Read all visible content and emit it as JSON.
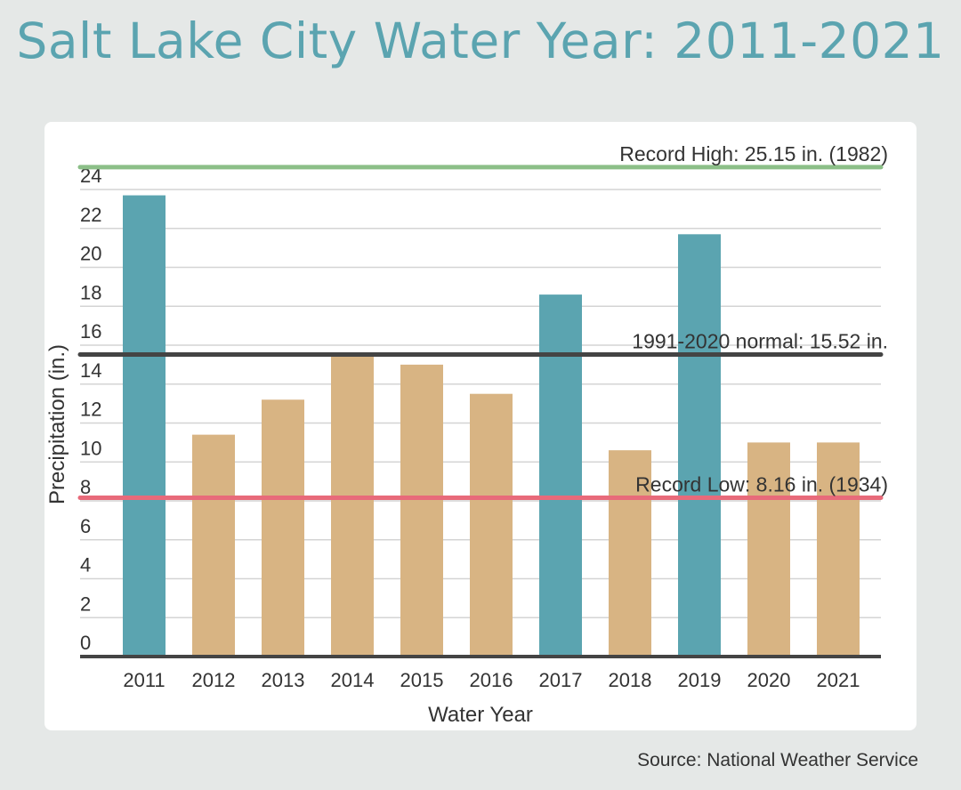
{
  "title": "Salt Lake City Water Year: 2011-2021",
  "source": "Source: National Weather Service",
  "colors": {
    "background": "#e5e8e7",
    "title": "#5ba4b0",
    "above_normal_bar": "#5ba4b0",
    "below_normal_bar": "#d8b483",
    "record_high_line": "#8cbf88",
    "normal_line": "#444444",
    "record_low_line": "#e86a7a",
    "gridline": "#d4d4d4"
  },
  "chart_data": {
    "type": "bar",
    "title": "Salt Lake City Water Year: 2011-2021",
    "xlabel": "Water Year",
    "ylabel": "Precipitation (in.)",
    "ylim": [
      0,
      24
    ],
    "yticks": [
      0,
      2,
      4,
      6,
      8,
      10,
      12,
      14,
      16,
      18,
      20,
      22,
      24
    ],
    "grid": true,
    "categories": [
      "2011",
      "2012",
      "2013",
      "2014",
      "2015",
      "2016",
      "2017",
      "2018",
      "2019",
      "2020",
      "2021"
    ],
    "values": [
      23.7,
      11.4,
      13.2,
      15.6,
      15.0,
      13.5,
      18.6,
      10.6,
      21.7,
      11.0,
      11.0
    ],
    "bar_colors": [
      "#5ba4b0",
      "#d8b483",
      "#d8b483",
      "#d8b483",
      "#d8b483",
      "#d8b483",
      "#5ba4b0",
      "#d8b483",
      "#5ba4b0",
      "#d8b483",
      "#d8b483"
    ],
    "reference_lines": [
      {
        "label": "Record High: 25.15 in. (1982)",
        "value": 25.15,
        "color": "#8cbf88"
      },
      {
        "label": "1991-2020 normal: 15.52 in.",
        "value": 15.52,
        "color": "#444444"
      },
      {
        "label": "Record Low: 8.16 in. (1934)",
        "value": 8.16,
        "color": "#e86a7a"
      }
    ]
  }
}
